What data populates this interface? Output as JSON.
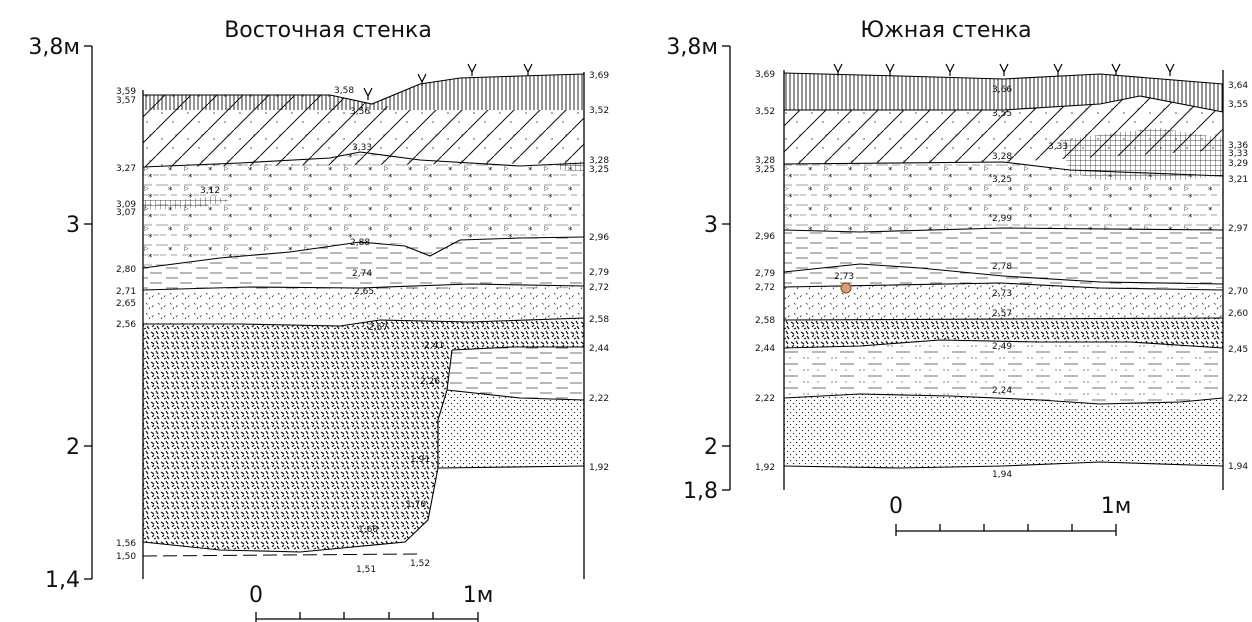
{
  "east": {
    "title": "Восточная стенка",
    "scale_labels": [
      "3,8м",
      "3",
      "2",
      "1,4"
    ],
    "ruler_labels": [
      "0",
      "1м"
    ],
    "left_marks": [
      "3,59",
      "3,57",
      "3,27",
      "3,09",
      "3,07",
      "2,80",
      "2,71",
      "2,65",
      "2,56",
      "1,56",
      "1,50"
    ],
    "right_marks": [
      "3,69",
      "3,52",
      "3,28",
      "3,25",
      "2,96",
      "2,79",
      "2,72",
      "2,58",
      "2,44",
      "2,22",
      "1,92"
    ],
    "inner_marks": [
      "3,58",
      "3,56",
      "3,33",
      "3,12",
      "2,88",
      "2,74",
      "2,65",
      "2,57",
      "2,41",
      "2,26",
      "1,91",
      "1,70",
      "1,60",
      "1,51",
      "1,52"
    ]
  },
  "south": {
    "title": "Южная стенка",
    "scale_labels": [
      "3,8м",
      "3",
      "2",
      "1,8"
    ],
    "ruler_labels": [
      "0",
      "1м"
    ],
    "left_marks": [
      "3,69",
      "3,52",
      "3,28",
      "3,25",
      "2,96",
      "2,79",
      "2,72",
      "2,58",
      "2,44",
      "2,22",
      "1,92"
    ],
    "right_marks": [
      "3,64",
      "3,55",
      "3,36",
      "3,33",
      "3,29",
      "3,21",
      "2,97",
      "2,70",
      "2,60",
      "2,45",
      "2,22",
      "1,94"
    ],
    "inner_marks": [
      "3,66",
      "3,55",
      "3,33",
      "3,28",
      "3,25",
      "2,99",
      "2,78",
      "2,73",
      "2,73",
      "2,57",
      "2,49",
      "2,24",
      "1,94"
    ]
  }
}
